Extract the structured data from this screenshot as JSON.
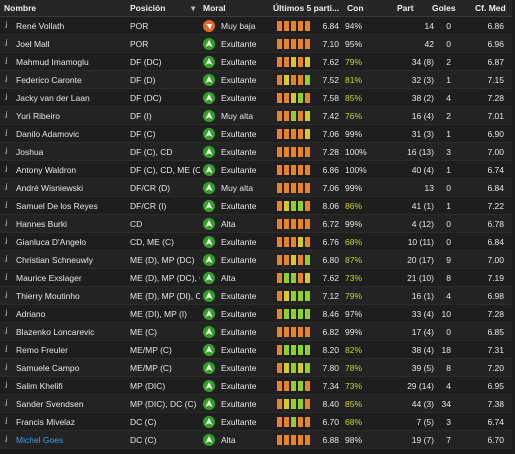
{
  "header": {
    "nombre": "Nombre",
    "posicion": "Posición",
    "moral": "Moral",
    "ultimos": "Últimos 5 parti...",
    "con": "Con",
    "part": "Part",
    "goles": "Goles",
    "cfmed": "Cf. Med"
  },
  "colors": {
    "bar_red": "#e0432a",
    "bar_orange": "#e8832a",
    "bar_yellow": "#d4c92a",
    "bar_green": "#8ed12c",
    "moral_up": "#33a02c",
    "moral_down": "#e06a2a",
    "link": "#3aa0e8"
  },
  "players": [
    {
      "info": "i",
      "name": "René Vollath",
      "pos": "POR",
      "moral": "Muy baja",
      "moral_dir": "down",
      "form": [
        "o",
        "o",
        "o",
        "o",
        "o"
      ],
      "rating": "6.84",
      "con": "94%",
      "con_style": "g",
      "part": "14",
      "goles": "0",
      "cfmed": "6.86"
    },
    {
      "info": "i",
      "name": "Joel Mall",
      "pos": "POR",
      "moral": "Exultante",
      "moral_dir": "up",
      "form": [
        "o",
        "o",
        "o",
        "o",
        "o"
      ],
      "rating": "7.10",
      "con": "95%",
      "con_style": "g",
      "part": "42",
      "goles": "0",
      "cfmed": "6.96"
    },
    {
      "info": "i",
      "name": "Mahmud Imamoglu",
      "pos": "DF (DC)",
      "moral": "Exultante",
      "moral_dir": "up",
      "form": [
        "o",
        "o",
        "y",
        "o",
        "y"
      ],
      "rating": "7.62",
      "con": "79%",
      "con_style": "y",
      "part": "34 (8)",
      "goles": "2",
      "cfmed": "6.87"
    },
    {
      "info": "i",
      "name": "Federico Caronte",
      "pos": "DF (D)",
      "moral": "Exultante",
      "moral_dir": "up",
      "form": [
        "o",
        "y",
        "o",
        "o",
        "g"
      ],
      "rating": "7.52",
      "con": "81%",
      "con_style": "y",
      "part": "32 (3)",
      "goles": "1",
      "cfmed": "7.15"
    },
    {
      "info": "i",
      "name": "Jacky van der Laan",
      "pos": "DF (DC)",
      "moral": "Exultante",
      "moral_dir": "up",
      "form": [
        "o",
        "o",
        "y",
        "g",
        "o"
      ],
      "rating": "7.58",
      "con": "85%",
      "con_style": "y",
      "part": "38 (2)",
      "goles": "4",
      "cfmed": "7.28"
    },
    {
      "info": "i",
      "name": "Yuri Ribeiro",
      "pos": "DF (I)",
      "moral": "Muy alta",
      "moral_dir": "up",
      "form": [
        "o",
        "o",
        "g",
        "o",
        "y"
      ],
      "rating": "7.42",
      "con": "76%",
      "con_style": "y",
      "part": "16 (4)",
      "goles": "2",
      "cfmed": "7.01"
    },
    {
      "info": "i",
      "name": "Danilo Adamovic",
      "pos": "DF (C)",
      "moral": "Exultante",
      "moral_dir": "up",
      "form": [
        "o",
        "o",
        "o",
        "o",
        "y"
      ],
      "rating": "7.06",
      "con": "99%",
      "con_style": "g",
      "part": "31 (3)",
      "goles": "1",
      "cfmed": "6.90"
    },
    {
      "info": "i",
      "name": "Joshua",
      "pos": "DF (C), CD",
      "moral": "Exultante",
      "moral_dir": "up",
      "form": [
        "o",
        "o",
        "o",
        "o",
        "o"
      ],
      "rating": "7.28",
      "con": "100%",
      "con_style": "g",
      "part": "16 (13)",
      "goles": "3",
      "cfmed": "7.00"
    },
    {
      "info": "i",
      "name": "Antony Waldron",
      "pos": "DF (C), CD, ME (C)",
      "moral": "Exultante",
      "moral_dir": "up",
      "form": [
        "o",
        "o",
        "o",
        "o",
        "o"
      ],
      "rating": "6.86",
      "con": "100%",
      "con_style": "g",
      "part": "40 (4)",
      "goles": "1",
      "cfmed": "6.74"
    },
    {
      "info": "i",
      "name": "André Wisniewski",
      "pos": "DF/CR (D)",
      "moral": "Muy alta",
      "moral_dir": "up",
      "form": [
        "o",
        "o",
        "o",
        "o",
        "o"
      ],
      "rating": "7.06",
      "con": "99%",
      "con_style": "g",
      "part": "13",
      "goles": "0",
      "cfmed": "6.84"
    },
    {
      "info": "i",
      "name": "Samuel De los Reyes",
      "pos": "DF/CR (I)",
      "moral": "Exultante",
      "moral_dir": "up",
      "form": [
        "o",
        "y",
        "g",
        "g",
        "o"
      ],
      "rating": "8.06",
      "con": "86%",
      "con_style": "y",
      "part": "41 (1)",
      "goles": "1",
      "cfmed": "7.22"
    },
    {
      "info": "i",
      "name": "Hannes Burki",
      "pos": "CD",
      "moral": "Alta",
      "moral_dir": "up",
      "form": [
        "o",
        "o",
        "o",
        "o",
        "o"
      ],
      "rating": "6.72",
      "con": "99%",
      "con_style": "g",
      "part": "4 (12)",
      "goles": "0",
      "cfmed": "6.78"
    },
    {
      "info": "i",
      "name": "Gianluca D'Angelo",
      "pos": "CD, ME (C)",
      "moral": "Exultante",
      "moral_dir": "up",
      "form": [
        "o",
        "o",
        "o",
        "y",
        "o"
      ],
      "rating": "6.76",
      "con": "68%",
      "con_style": "y",
      "part": "10 (11)",
      "goles": "0",
      "cfmed": "6.84"
    },
    {
      "info": "i",
      "name": "Christian Schneuwly",
      "pos": "ME (D), MP (DC)",
      "moral": "Exultante",
      "moral_dir": "up",
      "form": [
        "o",
        "o",
        "y",
        "o",
        "g"
      ],
      "rating": "6.80",
      "con": "87%",
      "con_style": "y",
      "part": "20 (17)",
      "goles": "9",
      "cfmed": "7.00"
    },
    {
      "info": "i",
      "name": "Maurice Exslager",
      "pos": "ME (D), MP (DC), CD",
      "moral": "Alta",
      "moral_dir": "up",
      "form": [
        "o",
        "g",
        "g",
        "o",
        "y"
      ],
      "rating": "7.62",
      "con": "73%",
      "con_style": "y",
      "part": "21 (10)",
      "goles": "8",
      "cfmed": "7.19"
    },
    {
      "info": "i",
      "name": "Thierry Moutinho",
      "pos": "ME (D), MP (DI), CD",
      "moral": "Exultante",
      "moral_dir": "up",
      "form": [
        "o",
        "y",
        "g",
        "g",
        "g"
      ],
      "rating": "7.12",
      "con": "79%",
      "con_style": "y",
      "part": "16 (1)",
      "goles": "4",
      "cfmed": "6.98"
    },
    {
      "info": "i",
      "name": "Adriano",
      "pos": "ME (DI), MP (I)",
      "moral": "Exultante",
      "moral_dir": "up",
      "form": [
        "o",
        "g",
        "g",
        "g",
        "g"
      ],
      "rating": "8.46",
      "con": "97%",
      "con_style": "g",
      "part": "33 (4)",
      "goles": "10",
      "cfmed": "7.28"
    },
    {
      "info": "i",
      "name": "Blazenko Loncarevic",
      "pos": "ME (C)",
      "moral": "Exultante",
      "moral_dir": "up",
      "form": [
        "o",
        "o",
        "o",
        "o",
        "o"
      ],
      "rating": "6.82",
      "con": "99%",
      "con_style": "g",
      "part": "17 (4)",
      "goles": "0",
      "cfmed": "6.85"
    },
    {
      "info": "i",
      "name": "Remo Freuler",
      "pos": "ME/MP (C)",
      "moral": "Exultante",
      "moral_dir": "up",
      "form": [
        "o",
        "g",
        "g",
        "g",
        "g"
      ],
      "rating": "8.20",
      "con": "82%",
      "con_style": "y",
      "part": "38 (4)",
      "goles": "18",
      "cfmed": "7.31"
    },
    {
      "info": "i",
      "name": "Samuele Campo",
      "pos": "ME/MP (C)",
      "moral": "Exultante",
      "moral_dir": "up",
      "form": [
        "o",
        "y",
        "g",
        "y",
        "g"
      ],
      "rating": "7.80",
      "con": "78%",
      "con_style": "y",
      "part": "39 (5)",
      "goles": "8",
      "cfmed": "7.20"
    },
    {
      "info": "i",
      "name": "Salim Khelifi",
      "pos": "MP (DIC)",
      "moral": "Exultante",
      "moral_dir": "up",
      "form": [
        "o",
        "o",
        "g",
        "g",
        "o"
      ],
      "rating": "7.34",
      "con": "73%",
      "con_style": "y",
      "part": "29 (14)",
      "goles": "4",
      "cfmed": "6.95"
    },
    {
      "info": "i",
      "name": "Sander Svendsen",
      "pos": "MP (DIC), DC (C)",
      "moral": "Exultante",
      "moral_dir": "up",
      "form": [
        "o",
        "y",
        "g",
        "g",
        "o"
      ],
      "rating": "8.40",
      "con": "85%",
      "con_style": "y",
      "part": "44 (3)",
      "goles": "34",
      "cfmed": "7.38"
    },
    {
      "info": "i",
      "name": "Francis Mivelaz",
      "pos": "DC (C)",
      "moral": "Exultante",
      "moral_dir": "up",
      "form": [
        "o",
        "o",
        "g",
        "o",
        "o"
      ],
      "rating": "6.70",
      "con": "68%",
      "con_style": "y",
      "part": "7 (5)",
      "goles": "3",
      "cfmed": "6.74"
    },
    {
      "info": "i",
      "name": "Michel Goes",
      "pos": "DC (C)",
      "moral": "Alta",
      "moral_dir": "up",
      "form": [
        "o",
        "o",
        "o",
        "o",
        "o"
      ],
      "rating": "6.88",
      "con": "98%",
      "con_style": "g",
      "part": "19 (7)",
      "goles": "7",
      "cfmed": "6.70",
      "link": true
    }
  ]
}
